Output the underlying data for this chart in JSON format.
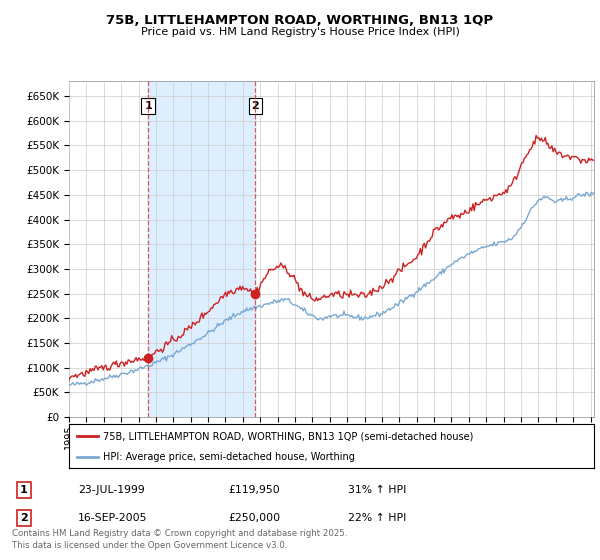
{
  "title_line1": "75B, LITTLEHAMPTON ROAD, WORTHING, BN13 1QP",
  "title_line2": "Price paid vs. HM Land Registry's House Price Index (HPI)",
  "ylim": [
    0,
    680000
  ],
  "ytick_values": [
    0,
    50000,
    100000,
    150000,
    200000,
    250000,
    300000,
    350000,
    400000,
    450000,
    500000,
    550000,
    600000,
    650000
  ],
  "ytick_labels": [
    "£0",
    "£50K",
    "£100K",
    "£150K",
    "£200K",
    "£250K",
    "£300K",
    "£350K",
    "£400K",
    "£450K",
    "£500K",
    "£550K",
    "£600K",
    "£650K"
  ],
  "hpi_color": "#7aa8d2",
  "price_color": "#cc2222",
  "shade_color": "#ddeeff",
  "marker1_x": 1999.55,
  "marker1_y": 119950,
  "marker2_x": 2005.71,
  "marker2_y": 250000,
  "marker1_label": "23-JUL-1999",
  "marker1_price": "£119,950",
  "marker1_hpi": "31% ↑ HPI",
  "marker2_label": "16-SEP-2005",
  "marker2_price": "£250,000",
  "marker2_hpi": "22% ↑ HPI",
  "legend_label1": "75B, LITTLEHAMPTON ROAD, WORTHING, BN13 1QP (semi-detached house)",
  "legend_label2": "HPI: Average price, semi-detached house, Worthing",
  "footnote": "Contains HM Land Registry data © Crown copyright and database right 2025.\nThis data is licensed under the Open Government Licence v3.0.",
  "background_color": "#ffffff",
  "grid_color": "#cccccc",
  "xlim_start": 1995.0,
  "xlim_end": 2025.2
}
